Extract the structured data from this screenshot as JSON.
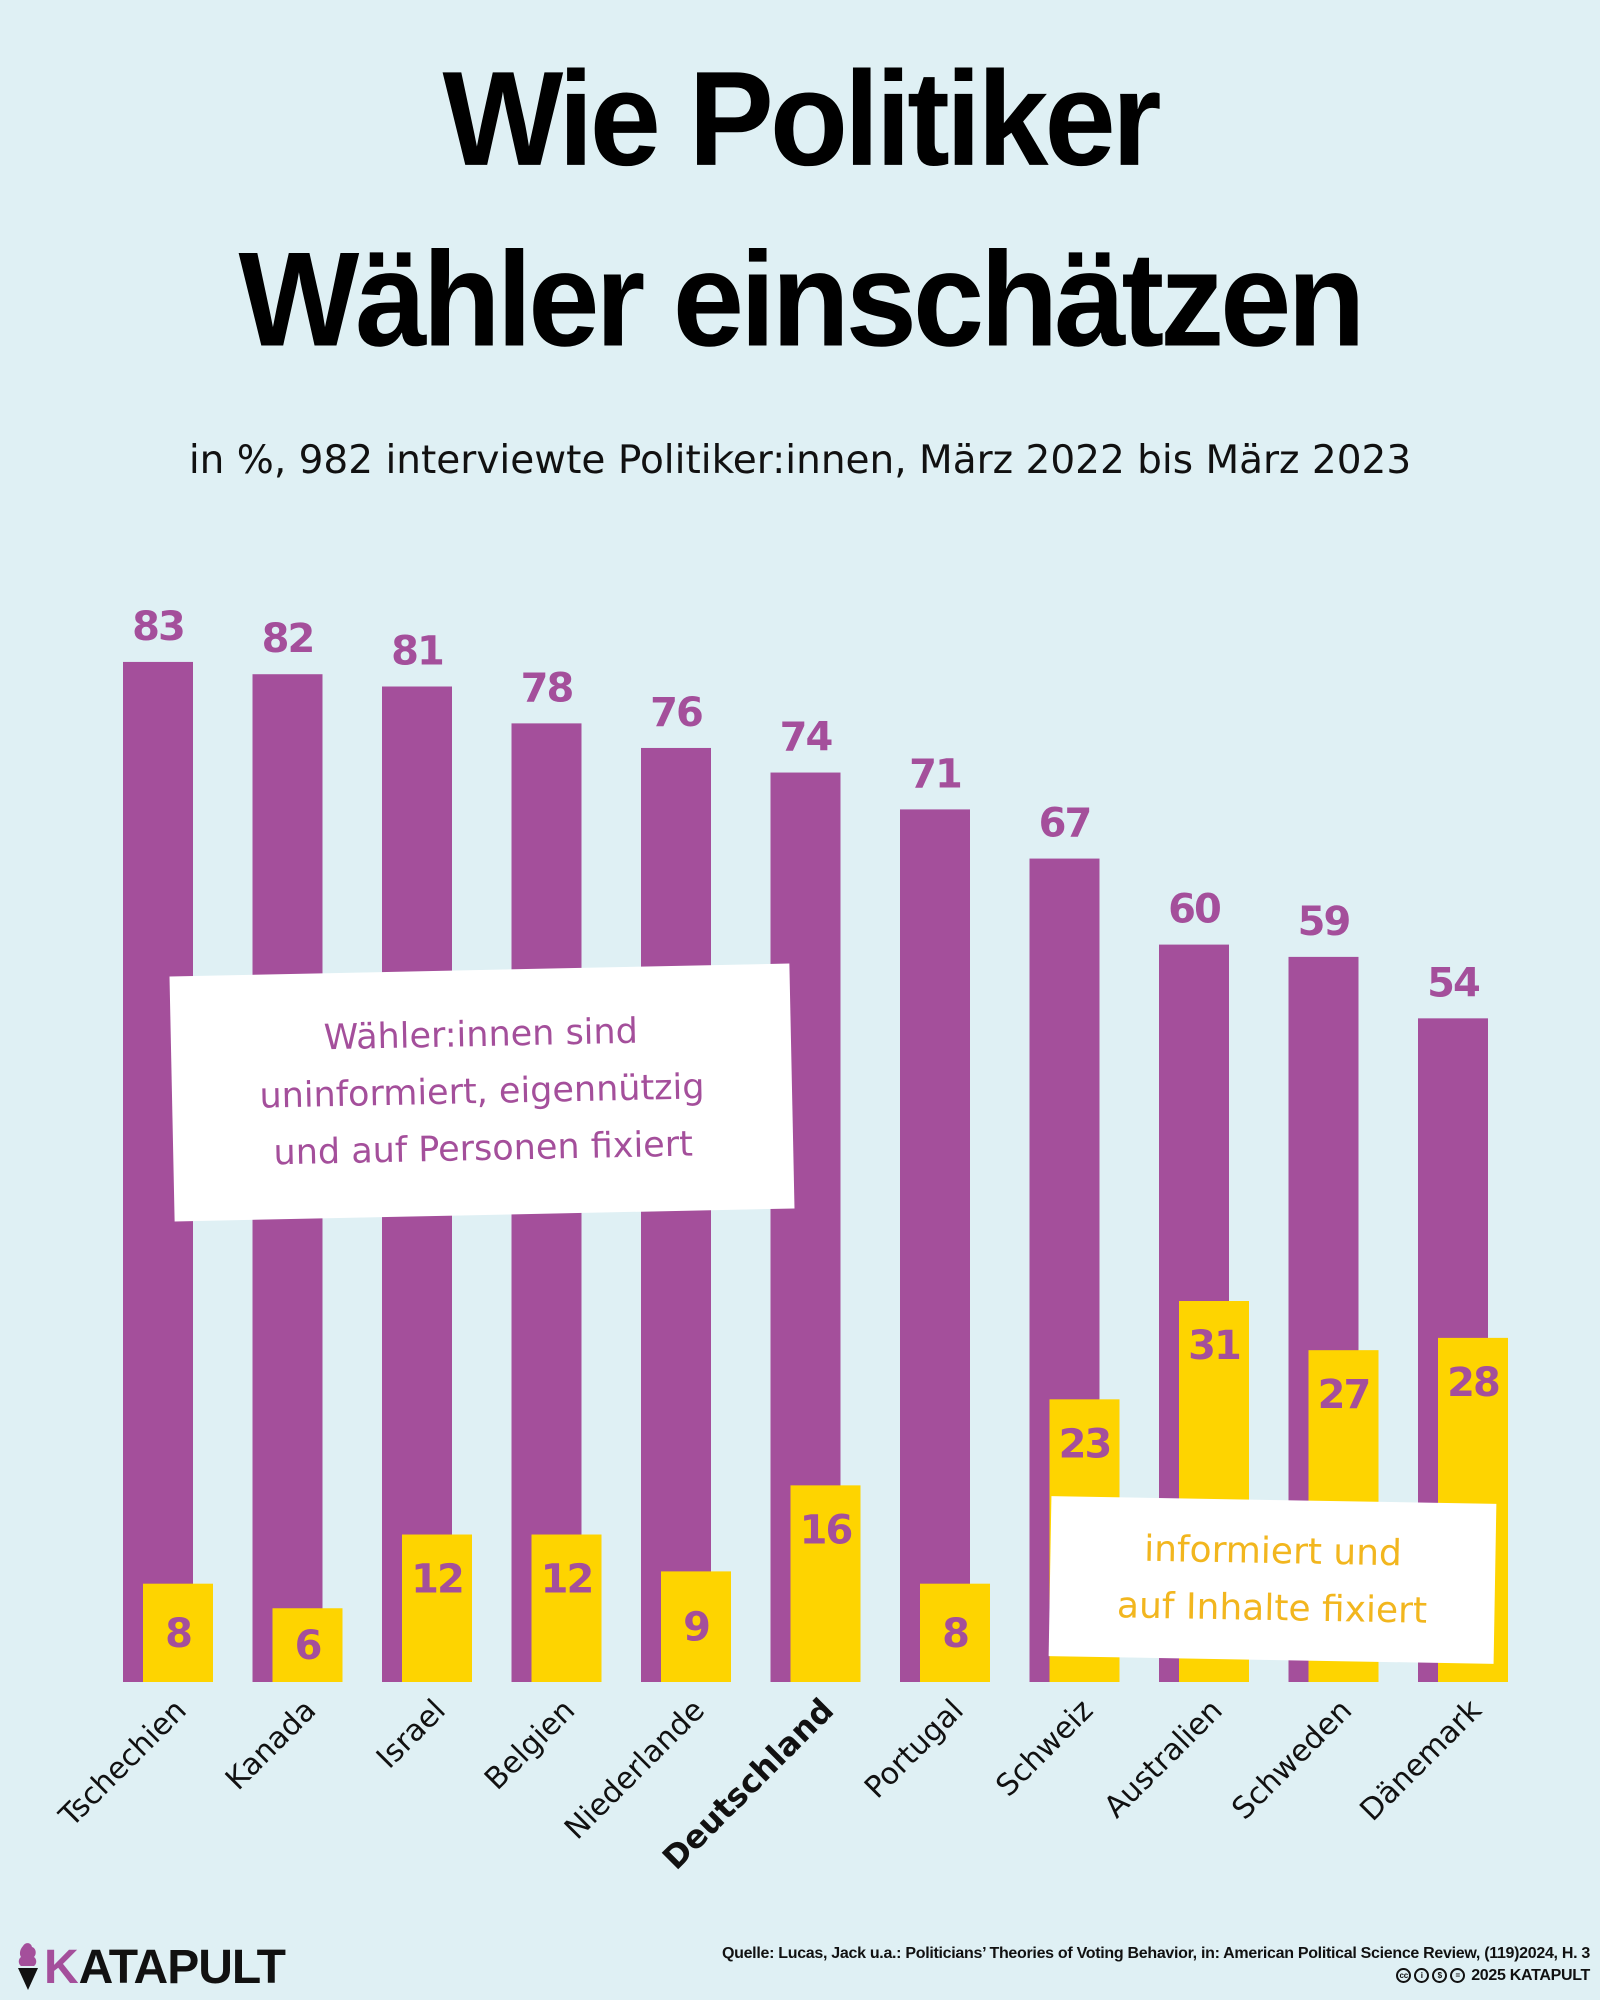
{
  "header": {
    "title_line1": "Wie Politiker",
    "title_line2": "Wähler einschätzen",
    "subtitle": "in %, 982 interviewte Politiker:innen, März 2022 bis März 2023"
  },
  "annotations": {
    "purple": [
      "Wähler:innen sind",
      "uninformiert, eigennützig",
      "und auf Personen fixiert"
    ],
    "yellow": [
      "informiert und",
      "auf Inhalte fixiert"
    ]
  },
  "footer": {
    "logo_k": "K",
    "logo_rest": "ATAPULT",
    "source": "Quelle: Lucas, Jack u.a.: Politicians’ Theories of Voting Behavior, in: American Political Science Review, (119)2024, H. 3",
    "license_icons": [
      "cc",
      "i",
      "$",
      "="
    ],
    "copyright": "2025 KATAPULT"
  },
  "colors": {
    "background": "#dff0f4",
    "purple": "#a44f9b",
    "yellow": "#fed400",
    "yellow_text": "#f2b61e"
  },
  "chart_data": {
    "type": "bar",
    "title": "Wie Politiker Wähler einschätzen",
    "subtitle": "in %, 982 interviewte Politiker:innen, März 2022 bis März 2023",
    "xlabel": "",
    "ylabel": "%",
    "ylim": [
      0,
      83
    ],
    "grid": false,
    "categories": [
      "Tschechien",
      "Kanada",
      "Israel",
      "Belgien",
      "Niederlande",
      "Deutschland",
      "Portugal",
      "Schweiz",
      "Australien",
      "Schweden",
      "Dänemark"
    ],
    "highlight_category": "Deutschland",
    "series": [
      {
        "name": "Wähler:innen sind uninformiert, eigennützig und auf Personen fixiert",
        "color": "#a44f9b",
        "values": [
          83,
          82,
          81,
          78,
          76,
          74,
          71,
          67,
          60,
          59,
          54
        ]
      },
      {
        "name": "informiert und auf Inhalte fixiert",
        "color": "#fed400",
        "values": [
          8,
          6,
          12,
          12,
          9,
          16,
          8,
          23,
          31,
          27,
          28
        ]
      }
    ]
  }
}
